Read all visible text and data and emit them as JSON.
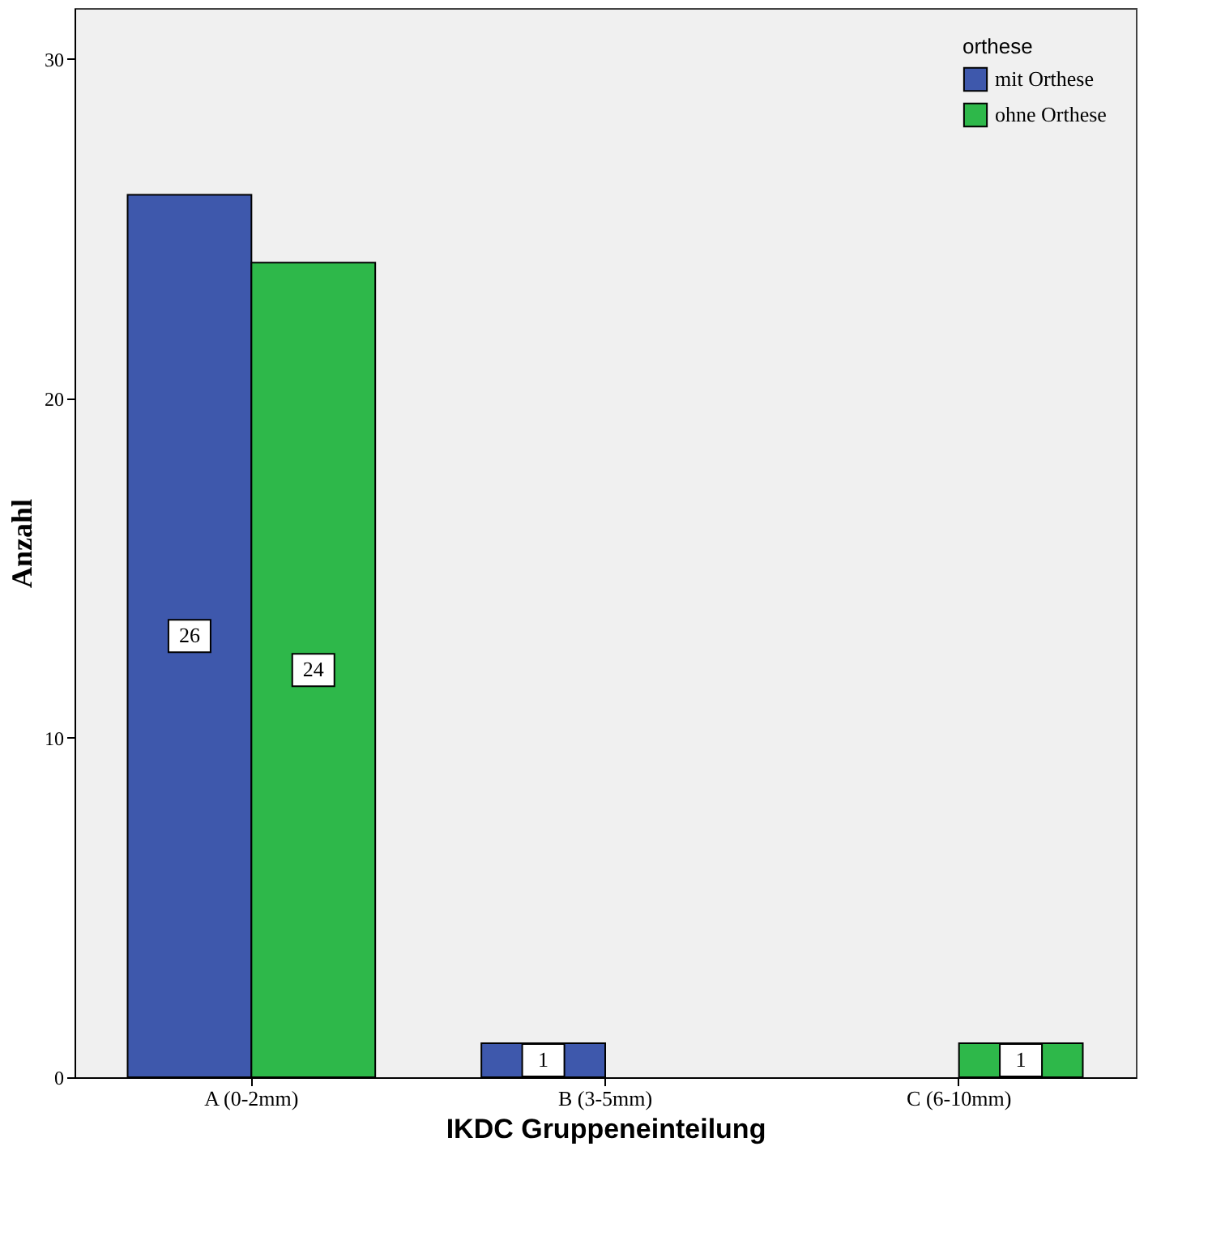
{
  "chart_data": {
    "type": "bar",
    "xlabel": "IKDC Gruppeneinteilung",
    "ylabel": "Anzahl",
    "legend_title": "orthese",
    "categories": [
      "A (0-2mm)",
      "B (3-5mm)",
      "C (6-10mm)"
    ],
    "series": [
      {
        "name": "mit Orthese",
        "color": "#3e58ac",
        "values": [
          26,
          1,
          null
        ],
        "value_labels": [
          "26",
          "1",
          null
        ]
      },
      {
        "name": "ohne Orthese",
        "color": "#2eb84a",
        "values": [
          24,
          null,
          1
        ],
        "value_labels": [
          "24",
          null,
          "1"
        ]
      }
    ],
    "ylim": [
      0,
      31.5
    ],
    "yticks": [
      0,
      10,
      20,
      30
    ],
    "grid": false,
    "legend": "top right"
  }
}
